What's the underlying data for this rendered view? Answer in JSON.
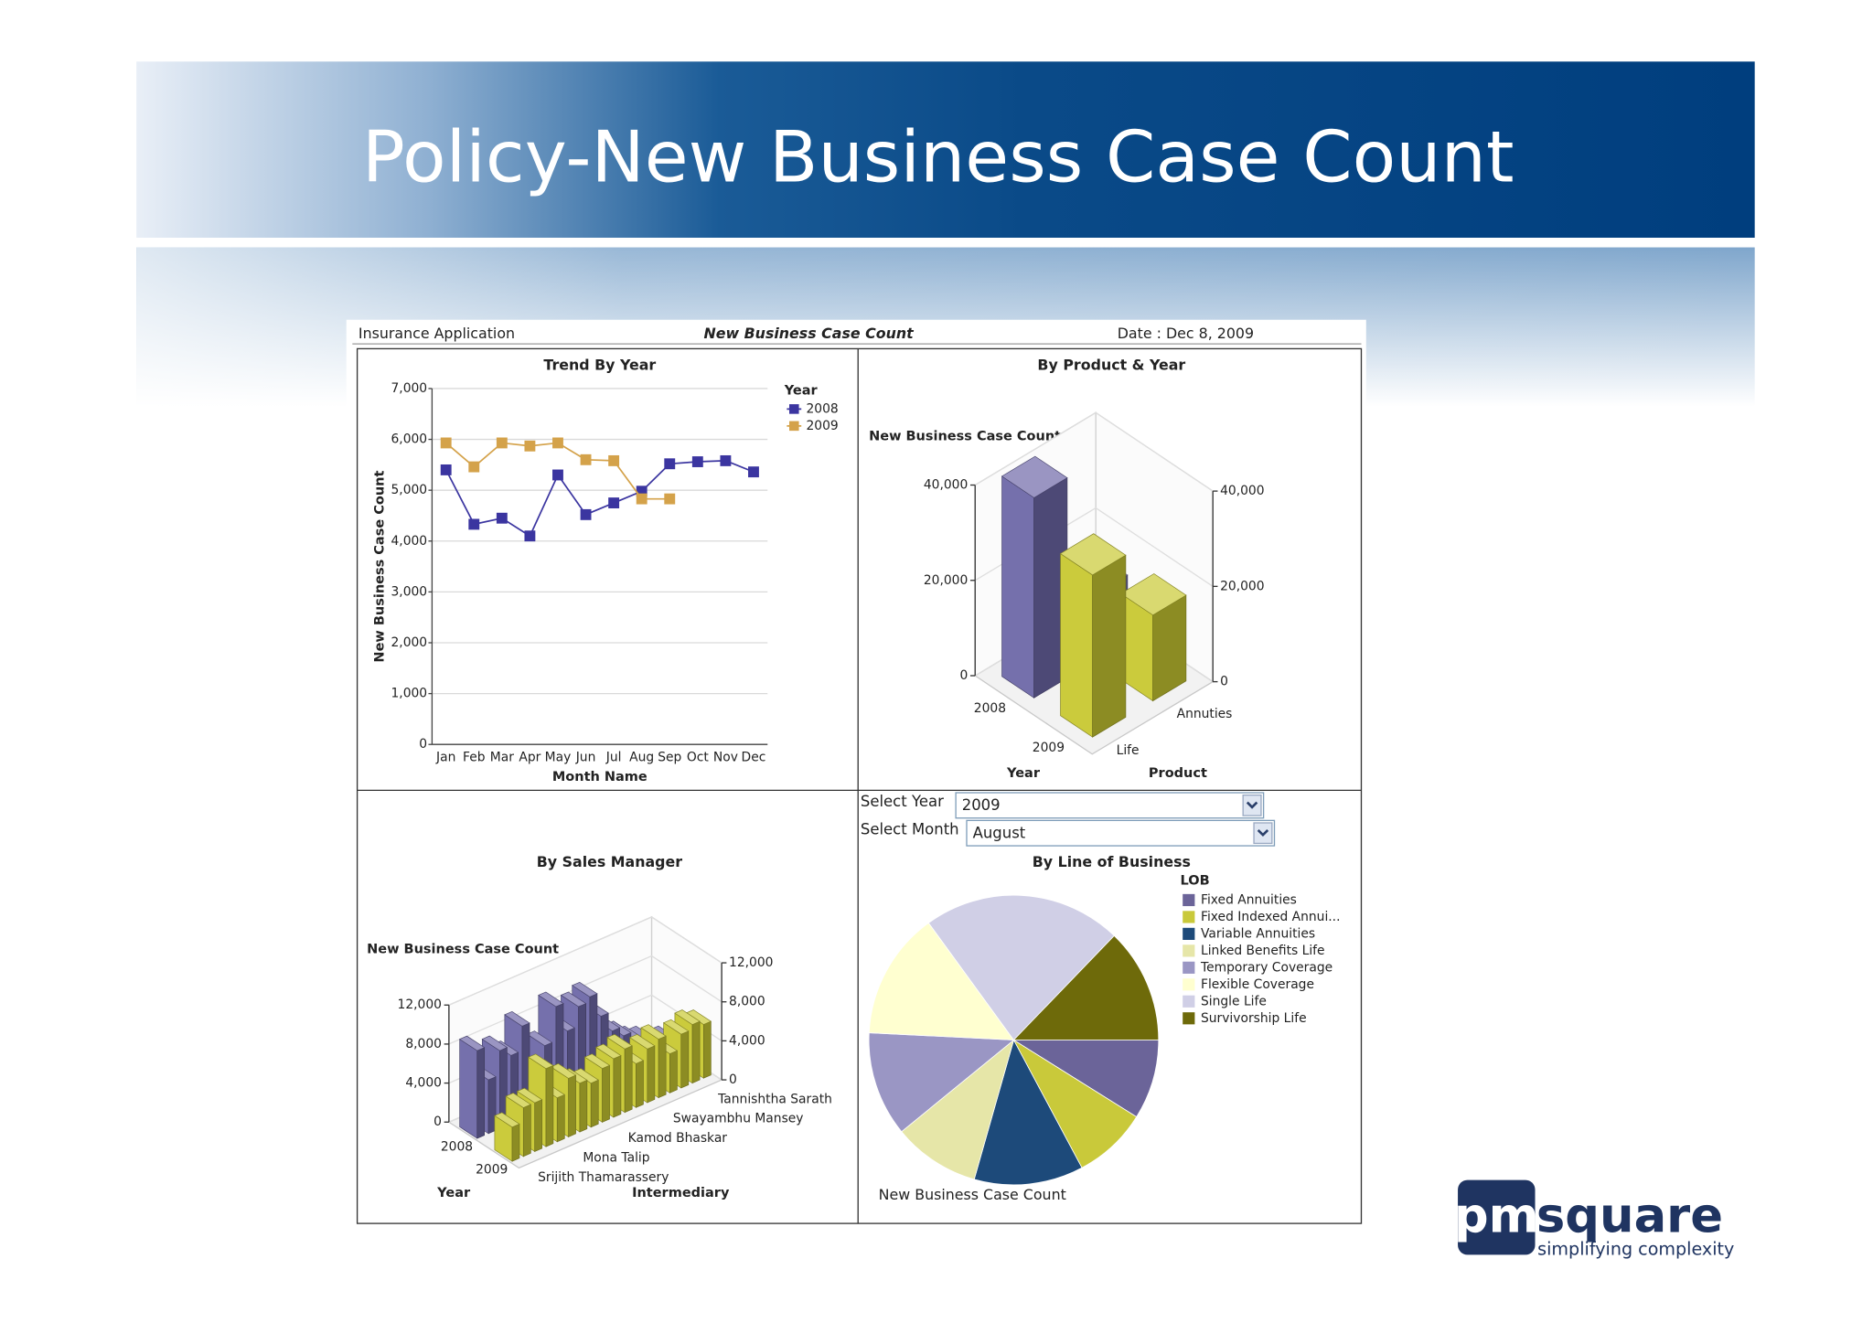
{
  "header": {
    "title": "Policy-New Business Case Count"
  },
  "report": {
    "app": "Insurance Application",
    "name": "New Business Case Count",
    "date": "Date : Dec 8, 2009"
  },
  "controls": {
    "year_label": "Select Year",
    "year": "2009",
    "month_label": "Select Month",
    "month": "August"
  },
  "logo": {
    "mark": "pm",
    "word": "square",
    "tagline": "simplifying complexity"
  },
  "chart_data": [
    {
      "type": "line",
      "title": "Trend By Year",
      "xlabel": "Month Name",
      "ylabel": "New Business Case Count",
      "legend_title": "Year",
      "legend": "right",
      "grid": true,
      "categories": [
        "Jan",
        "Feb",
        "Mar",
        "Apr",
        "May",
        "Jun",
        "Jul",
        "Aug",
        "Sep",
        "Oct",
        "Nov",
        "Dec"
      ],
      "series": [
        {
          "name": "2008",
          "color": "#3b35a0",
          "values": [
            5400,
            4330,
            4450,
            4100,
            5300,
            4520,
            4750,
            4980,
            5520,
            5560,
            5580,
            5360
          ]
        },
        {
          "name": "2009",
          "color": "#d4a24a",
          "values": [
            5930,
            5460,
            5930,
            5870,
            5930,
            5600,
            5580,
            4830,
            4830,
            null,
            null,
            null
          ]
        }
      ],
      "ylim": [
        0,
        7000
      ],
      "yticks": [
        0,
        {
          "value": 1000,
          "label": "1,000"
        },
        {
          "value": 2000,
          "label": "2,000"
        },
        {
          "value": 3000,
          "label": "3,000"
        },
        {
          "value": 4000,
          "label": "4,000"
        },
        {
          "value": 5000,
          "label": "5,000"
        },
        {
          "value": 6000,
          "label": "6,000"
        },
        {
          "value": 7000,
          "label": "7,000"
        }
      ]
    },
    {
      "type": "bar3d",
      "title": "By Product & Year",
      "ylabel": "New Business Case Count",
      "xlabel": "Year",
      "zlabel": "Product",
      "categories": [
        "Life",
        "Annuties"
      ],
      "series": [
        {
          "name": "2008",
          "color": "#6e68a8",
          "values": [
            42000,
            14000
          ]
        },
        {
          "name": "2009",
          "color": "#c8c832",
          "values": [
            34000,
            18000
          ]
        }
      ],
      "ylim": [
        0,
        40000
      ],
      "yticks": [
        0,
        {
          "value": 20000,
          "label": "20,000"
        },
        {
          "value": 40000,
          "label": "40,000"
        }
      ]
    },
    {
      "type": "bar3d",
      "title": "By Sales Manager",
      "ylabel": "New Business Case Count",
      "xlabel": "Year",
      "zlabel": "Intermediary",
      "categories": [
        "Srijith Thamarassery",
        null,
        null,
        null,
        "Mona Talip",
        null,
        null,
        null,
        "Kamod Bhaskar",
        null,
        null,
        null,
        "Swayambhu Mansey",
        null,
        null,
        null,
        "Tannishtha Sarath",
        null
      ],
      "series": [
        {
          "name": "2008",
          "color": "#6e68a8",
          "values": [
            9000,
            5500,
            8000,
            7000,
            9500,
            4000,
            6500,
            10000,
            7000,
            9000,
            9500,
            7000,
            5000,
            4000,
            3000,
            2500,
            2000,
            1500
          ]
        },
        {
          "name": "2009",
          "color": "#c8c832",
          "values": [
            3500,
            5000,
            5000,
            8000,
            4500,
            6000,
            5000,
            4500,
            5500,
            6000,
            6500,
            4500,
            5500,
            6000,
            4000,
            5500,
            6000,
            5500
          ]
        }
      ],
      "ylim": [
        0,
        12000
      ],
      "yticks": [
        0,
        {
          "value": 4000,
          "label": "4,000"
        },
        {
          "value": 8000,
          "label": "8,000"
        },
        {
          "value": 12000,
          "label": "12,000"
        }
      ]
    },
    {
      "type": "pie",
      "title": "By Line of Business",
      "legend_title": "LOB",
      "caption": "New Business Case Count",
      "legend": "right",
      "categories": [
        "Fixed Annuities",
        "Fixed Indexed Annui...",
        "Variable Annuities",
        "Linked Benefits Life",
        "Temporary Coverage",
        "Flexible Coverage",
        "Single Life",
        "Survivorship Life"
      ],
      "values": [
        8.9,
        8.3,
        12.2,
        9.7,
        11.7,
        14.2,
        22.2,
        12.8
      ],
      "colors": [
        "#6b6499",
        "#c9c93a",
        "#1d4a7a",
        "#e6e6a8",
        "#9a96c4",
        "#ffffd0",
        "#d0cfe6",
        "#6e6a0a"
      ]
    }
  ]
}
